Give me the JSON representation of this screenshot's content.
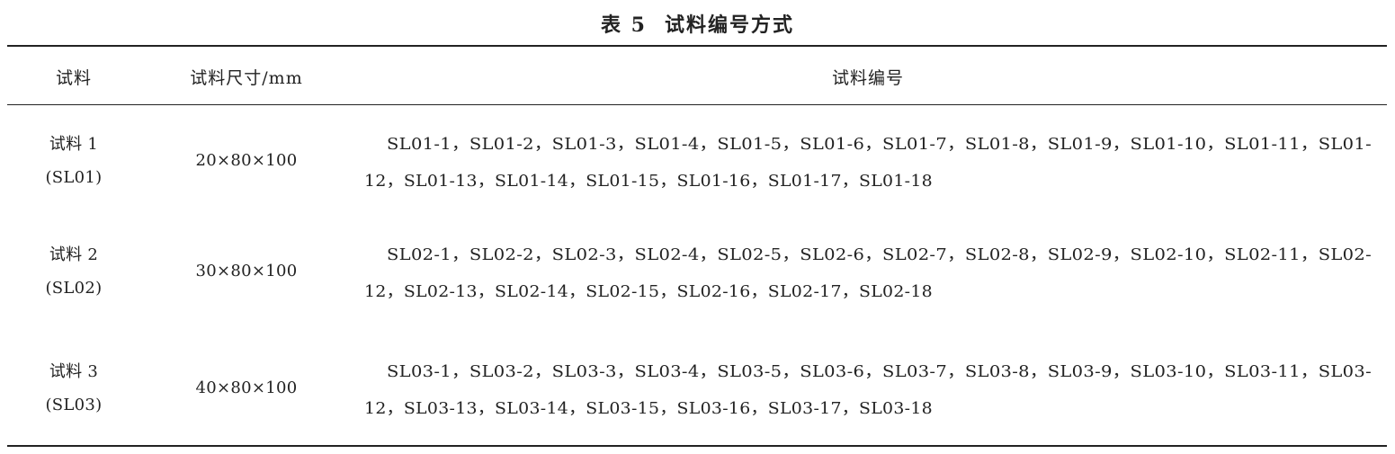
{
  "caption": {
    "label": "表 5",
    "title": "试料编号方式"
  },
  "columns": [
    "试料",
    "试料尺寸/mm",
    "试料编号"
  ],
  "rows": [
    {
      "sample": [
        "试料 1",
        "(SL01)"
      ],
      "size": "20×80×100",
      "ids": [
        "SL01-1，SL01-2，SL01-3，SL01-4，SL01-5，SL01-6，SL01-7，SL01-8，SL01-9，SL01-10，SL01-11，SL01-",
        "12，SL01-13，SL01-14，SL01-15，SL01-16，SL01-17，SL01-18"
      ]
    },
    {
      "sample": [
        "试料 2",
        "(SL02)"
      ],
      "size": "30×80×100",
      "ids": [
        "SL02-1，SL02-2，SL02-3，SL02-4，SL02-5，SL02-6，SL02-7，SL02-8，SL02-9，SL02-10，SL02-11，SL02-",
        "12，SL02-13，SL02-14，SL02-15，SL02-16，SL02-17，SL02-18"
      ]
    },
    {
      "sample": [
        "试料 3",
        "(SL03)"
      ],
      "size": "40×80×100",
      "ids": [
        "SL03-1，SL03-2，SL03-3，SL03-4，SL03-5，SL03-6，SL03-7，SL03-8，SL03-9，SL03-10，SL03-11，SL03-",
        "12，SL03-13，SL03-14，SL03-15，SL03-16，SL03-17，SL03-18"
      ]
    }
  ]
}
